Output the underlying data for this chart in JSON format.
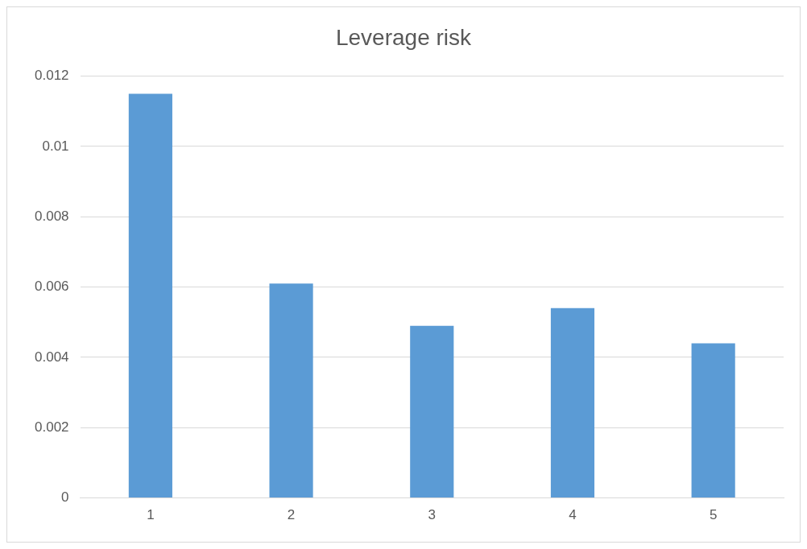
{
  "chart_data": {
    "type": "bar",
    "title": "Leverage risk",
    "categories": [
      "1",
      "2",
      "3",
      "4",
      "5"
    ],
    "values": [
      0.0115,
      0.0061,
      0.0049,
      0.0054,
      0.0044
    ],
    "color": "#5b9bd5",
    "ylim": [
      0,
      0.012
    ],
    "yticks": [
      0,
      0.002,
      0.004,
      0.006,
      0.008,
      0.01,
      0.012
    ],
    "grid": "y",
    "legend": false
  }
}
